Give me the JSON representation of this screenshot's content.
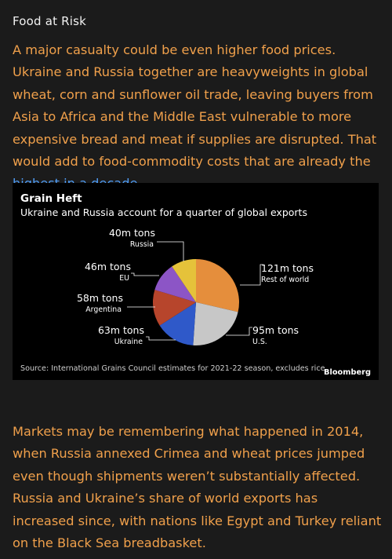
{
  "article": {
    "section_title": "Food at Risk",
    "para1_before_link": "A major casualty could be even higher food prices. Ukraine and Russia together are heavyweights in global wheat, corn and sunflower oil trade, leaving buyers from Asia to Africa and the Middle East vulnerable to more expensive bread and meat if supplies are disrupted. That would add to food-commodity costs that are already the ",
    "para1_link": "highest in a decade",
    "para1_after_link": ".",
    "para2": "Markets may be remembering what happened in 2014, when Russia annexed Crimea and wheat prices jumped even though shipments weren’t substantially affected. Russia and Ukraine’s share of world exports has increased since, with nations like Egypt and Turkey reliant on the Black Sea breadbasket."
  },
  "colors": {
    "background": "#1b1b1b",
    "body_text": "#f0a04b",
    "link": "#4f9bf3"
  },
  "chart_data": {
    "type": "pie",
    "title": "Grain Heft",
    "subtitle": "Ukraine and Russia account for a quarter of global exports",
    "unit": "m tons",
    "slices": [
      {
        "name": "Rest of world",
        "value": 121,
        "label": "121m tons",
        "color": "#e58e3c"
      },
      {
        "name": "U.S.",
        "value": 95,
        "label": "95m tons",
        "color": "#c7c7c7"
      },
      {
        "name": "Ukraine",
        "value": 63,
        "label": "63m tons",
        "color": "#2f59c9"
      },
      {
        "name": "Argentina",
        "value": 58,
        "label": "58m tons",
        "color": "#b7452c"
      },
      {
        "name": "EU",
        "value": 46,
        "label": "46m tons",
        "color": "#8c55c6"
      },
      {
        "name": "Russia",
        "value": 40,
        "label": "40m tons",
        "color": "#e5c23a"
      }
    ],
    "source": "Source: International Grains Council estimates for 2021-22 season, excludes rice",
    "brand": "Bloomberg"
  }
}
